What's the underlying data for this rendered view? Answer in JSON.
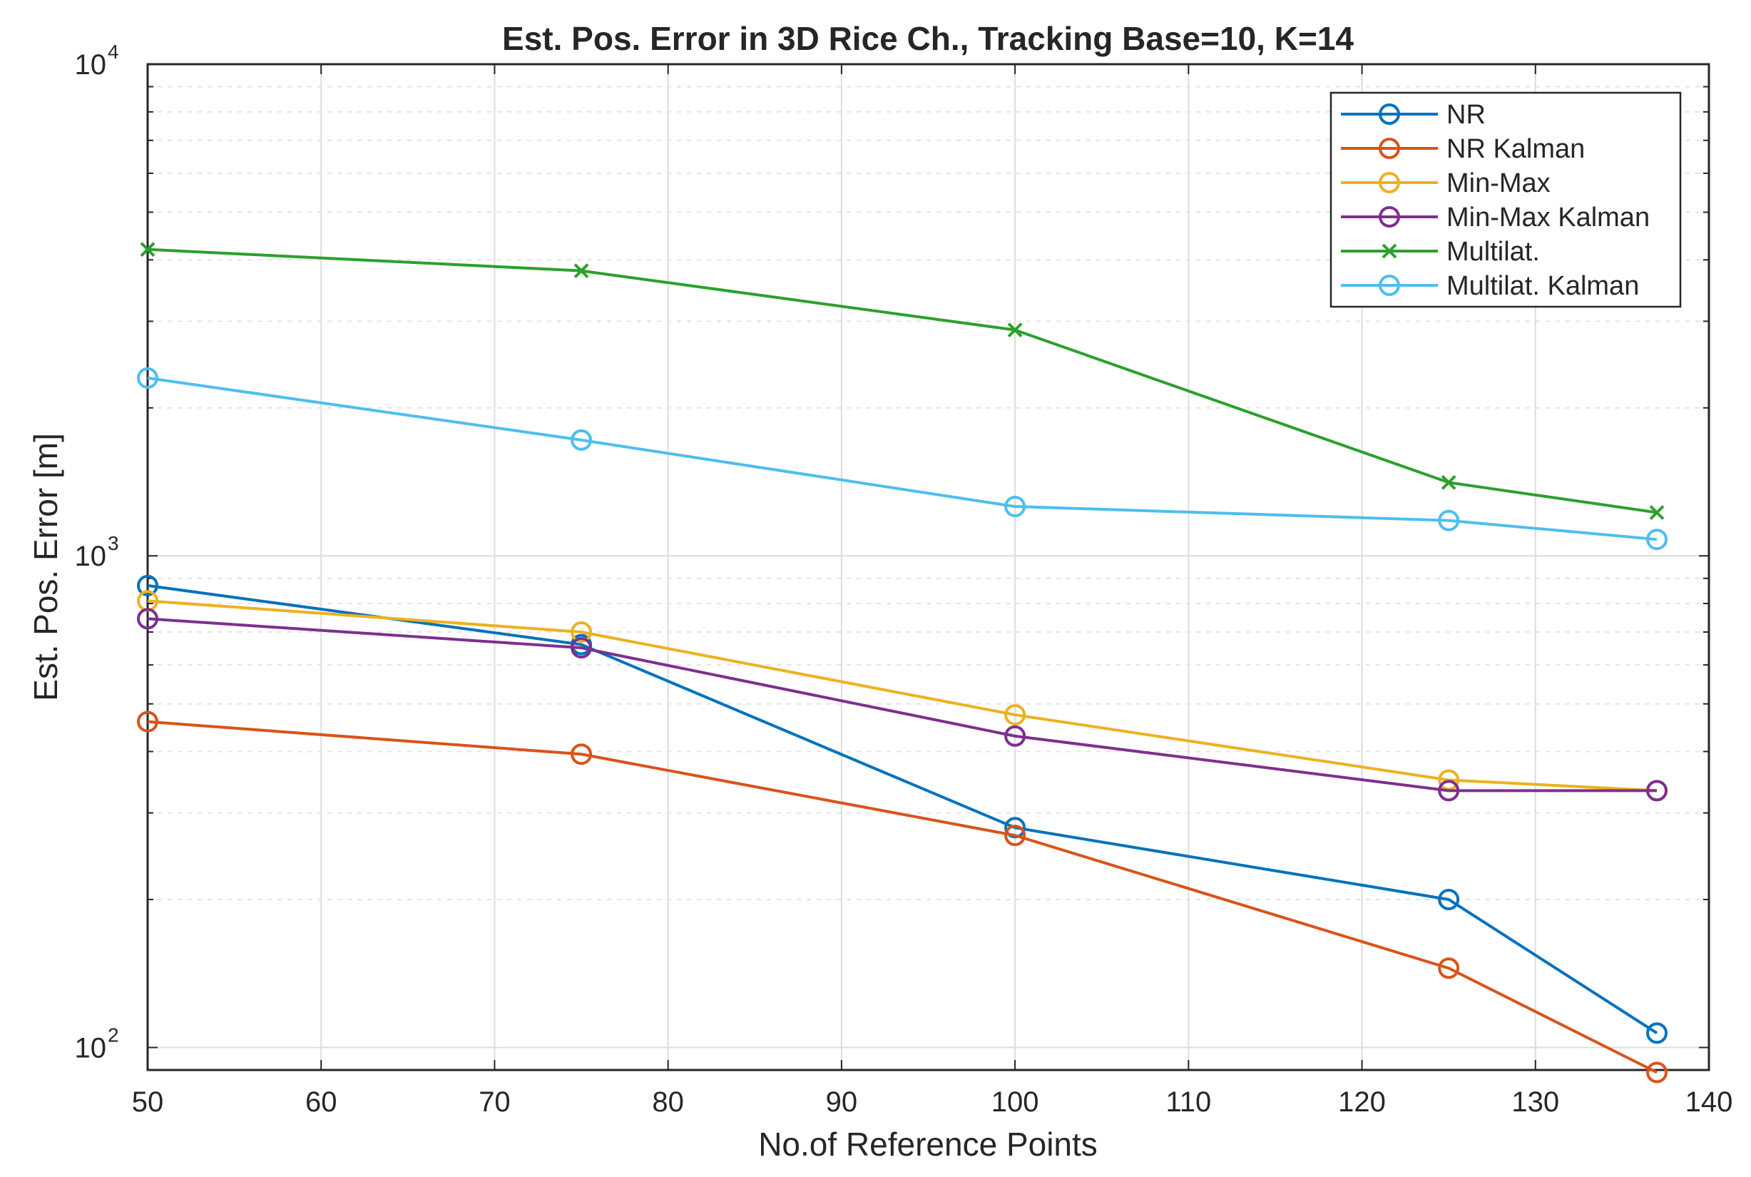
{
  "chart_data": {
    "type": "line",
    "title": "Est. Pos. Error in 3D Rice Ch., Tracking Base=10, K=14",
    "xlabel": "No.of Reference Points",
    "ylabel": "Est. Pos. Error [m]",
    "x": [
      50,
      75,
      100,
      125,
      137
    ],
    "xlim": [
      50,
      140
    ],
    "xticks": [
      50,
      60,
      70,
      80,
      90,
      100,
      110,
      120,
      130,
      140
    ],
    "ylim": [
      90,
      10000
    ],
    "yscale": "log",
    "yticks": [
      {
        "value": 100,
        "base": "10",
        "exp": "2"
      },
      {
        "value": 1000,
        "base": "10",
        "exp": "3"
      },
      {
        "value": 10000,
        "base": "10",
        "exp": "4"
      }
    ],
    "grid": true,
    "legend_position": "top-right",
    "series": [
      {
        "name": "NR",
        "color": "#0072BD",
        "marker": "circle",
        "values": [
          870,
          660,
          280,
          200,
          107
        ]
      },
      {
        "name": "NR Kalman",
        "color": "#D95319",
        "marker": "circle",
        "values": [
          460,
          395,
          270,
          145,
          89
        ]
      },
      {
        "name": "Min-Max",
        "color": "#EDB120",
        "marker": "circle",
        "values": [
          810,
          700,
          475,
          350,
          333
        ]
      },
      {
        "name": "Min-Max Kalman",
        "color": "#7E2F8E",
        "marker": "circle",
        "values": [
          745,
          650,
          430,
          333,
          333
        ]
      },
      {
        "name": "Multilat.",
        "color": "#2CA02C",
        "marker": "x",
        "values": [
          4200,
          3800,
          2880,
          1410,
          1225
        ]
      },
      {
        "name": "Multilat. Kalman",
        "color": "#4DBEEE",
        "marker": "circle",
        "values": [
          2300,
          1720,
          1260,
          1180,
          1080
        ]
      }
    ]
  }
}
